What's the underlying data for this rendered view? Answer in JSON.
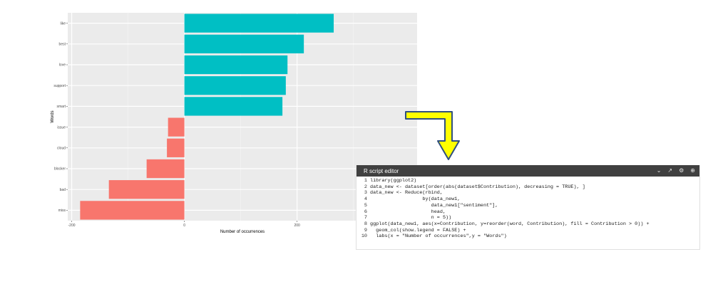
{
  "chart_data": {
    "type": "bar",
    "orientation": "horizontal",
    "categories": [
      "like",
      "best",
      "love",
      "support",
      "smart",
      "issue",
      "cloud",
      "blocker",
      "bad",
      "miss"
    ],
    "values": [
      265,
      212,
      183,
      180,
      174,
      -29,
      -31,
      -67,
      -134,
      -185
    ],
    "positive_color": "#00BFC4",
    "negative_color": "#F8766D",
    "xlabel": "Number of occurrences",
    "ylabel": "Words",
    "xticks": [
      -200,
      0,
      200
    ],
    "xlim": [
      -207,
      413
    ],
    "grid": true
  },
  "editor": {
    "title": "R script editor",
    "icons": [
      "chevron-down-icon",
      "expand-arrow-icon",
      "gear-icon",
      "plus-circle-icon"
    ],
    "lines": [
      {
        "num": "1",
        "text": "library(ggplot2)"
      },
      {
        "num": "2",
        "text": "data_new <- dataset[order(abs(dataset$Contribution), decreasing = TRUE), ]"
      },
      {
        "num": "3",
        "text": "data_new <- Reduce(rbind,"
      },
      {
        "num": "4",
        "text": "                  by(data_new1,"
      },
      {
        "num": "5",
        "text": "                     data_new1[\"sentiment\"],"
      },
      {
        "num": "6",
        "text": "                     head,"
      },
      {
        "num": "7",
        "text": "                     n = 5))"
      },
      {
        "num": "8",
        "text": "ggplot(data_new1, aes(x=Contribution, y=reorder(word, Contribution), fill = Contribution > 0)) +"
      },
      {
        "num": "9",
        "text": "  geom_col(show.legend = FALSE) +"
      },
      {
        "num": "10",
        "text": "  labs(x = \"Number of occurrences\",y = \"Words\")"
      }
    ]
  },
  "colors": {
    "arrow_fill": "#FFFF00",
    "arrow_stroke": "#2F4F7F",
    "panel_background": "#EBEBEB",
    "editor_header": "#404040"
  }
}
